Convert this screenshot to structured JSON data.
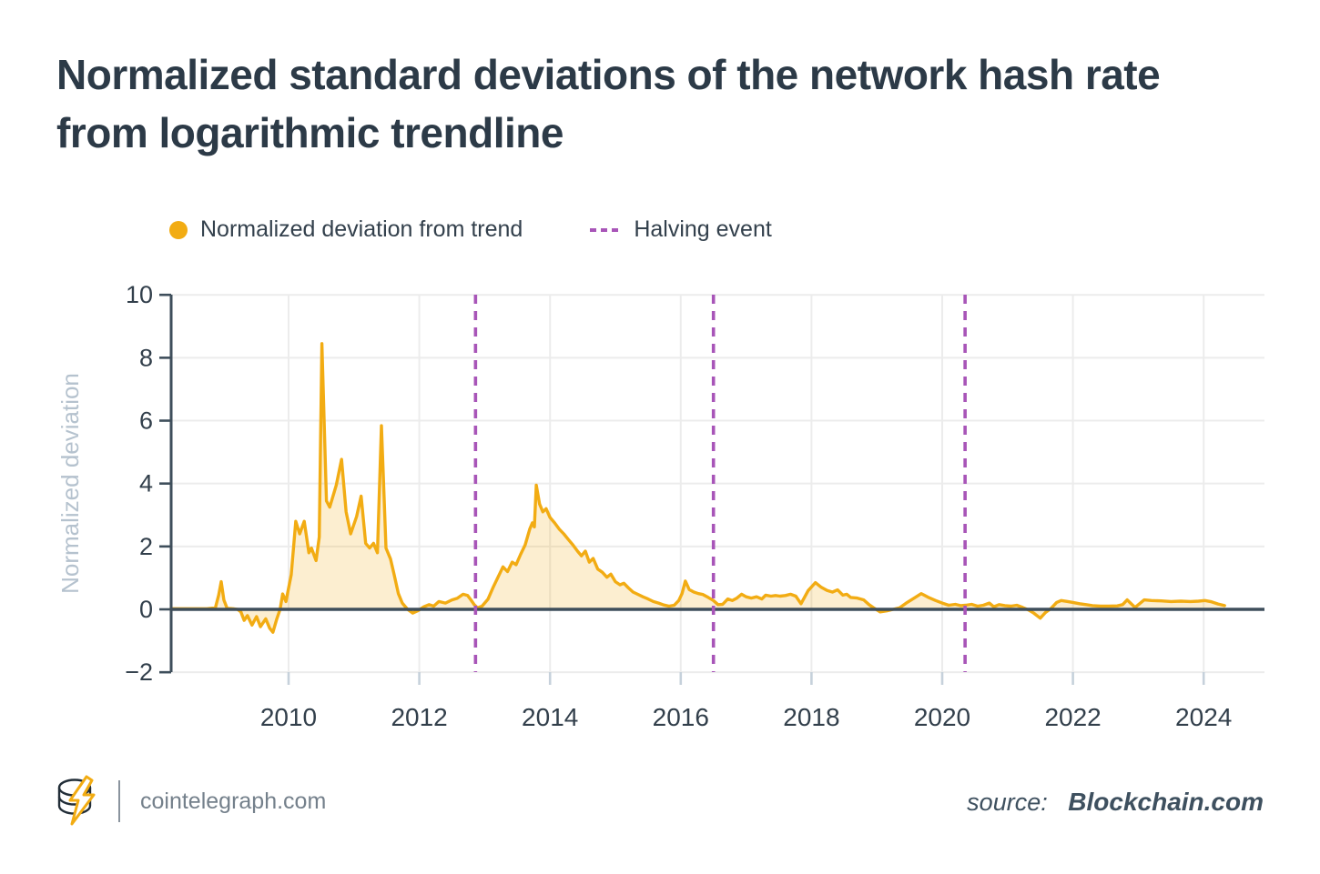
{
  "header": {
    "title_line1": "Normalized standard deviations of the network hash rate",
    "title_line2": "from logarithmic trendline"
  },
  "legend": [
    {
      "label": "Normalized deviation from trend",
      "marker": "dot",
      "color": "#F2AC13"
    },
    {
      "label": "Halving event",
      "marker": "dashed-line",
      "color": "#A855B8"
    }
  ],
  "colors": {
    "series_line": "#F2AC13",
    "series_fill": "rgba(242,172,19,0.20)",
    "halving_line": "#A855B8",
    "axis_dark": "#3E4E5B",
    "grid": "#ECECEC",
    "tick_text": "#323F4B",
    "x_tick_stub": "#C6D1DB",
    "axis_unit_label": "#B5C2CE",
    "title_text": "#2C3A47"
  },
  "chart_data": {
    "type": "area",
    "title": "Normalized standard deviations of the network hash rate from logarithmic trendline",
    "xlabel": "",
    "ylabel": "Normalized deviation",
    "xlim": [
      2008.2,
      2024.93
    ],
    "ylim": [
      -2,
      10
    ],
    "x_ticks": [
      2010,
      2012,
      2014,
      2016,
      2018,
      2020,
      2022,
      2024
    ],
    "y_ticks": [
      -2,
      0,
      2,
      4,
      6,
      8,
      10
    ],
    "grid": true,
    "legend_position": "top",
    "events": [
      {
        "label": "Halving event",
        "x": 2012.86
      },
      {
        "label": "Halving event",
        "x": 2016.5
      },
      {
        "label": "Halving event",
        "x": 2020.35
      }
    ],
    "series": [
      {
        "name": "Normalized deviation from trend",
        "points": [
          [
            2008.2,
            0.02
          ],
          [
            2008.5,
            0.02
          ],
          [
            2008.75,
            0.02
          ],
          [
            2008.88,
            0.05
          ],
          [
            2008.93,
            0.45
          ],
          [
            2008.97,
            0.88
          ],
          [
            2009.01,
            0.3
          ],
          [
            2009.06,
            0.03
          ],
          [
            2009.15,
            0.02
          ],
          [
            2009.22,
            0.0
          ],
          [
            2009.27,
            -0.08
          ],
          [
            2009.32,
            -0.35
          ],
          [
            2009.37,
            -0.2
          ],
          [
            2009.44,
            -0.5
          ],
          [
            2009.51,
            -0.23
          ],
          [
            2009.57,
            -0.55
          ],
          [
            2009.65,
            -0.3
          ],
          [
            2009.71,
            -0.6
          ],
          [
            2009.76,
            -0.73
          ],
          [
            2009.82,
            -0.3
          ],
          [
            2009.87,
            0.0
          ],
          [
            2009.91,
            0.49
          ],
          [
            2009.96,
            0.25
          ],
          [
            2010.04,
            1.1
          ],
          [
            2010.11,
            2.8
          ],
          [
            2010.17,
            2.4
          ],
          [
            2010.24,
            2.8
          ],
          [
            2010.31,
            1.8
          ],
          [
            2010.35,
            1.95
          ],
          [
            2010.42,
            1.55
          ],
          [
            2010.47,
            2.3
          ],
          [
            2010.51,
            8.45
          ],
          [
            2010.58,
            3.45
          ],
          [
            2010.63,
            3.25
          ],
          [
            2010.73,
            3.95
          ],
          [
            2010.81,
            4.77
          ],
          [
            2010.88,
            3.1
          ],
          [
            2010.95,
            2.4
          ],
          [
            2011.04,
            2.95
          ],
          [
            2011.11,
            3.6
          ],
          [
            2011.18,
            2.1
          ],
          [
            2011.24,
            1.95
          ],
          [
            2011.3,
            2.1
          ],
          [
            2011.36,
            1.8
          ],
          [
            2011.42,
            5.84
          ],
          [
            2011.49,
            1.95
          ],
          [
            2011.56,
            1.6
          ],
          [
            2011.61,
            1.15
          ],
          [
            2011.68,
            0.5
          ],
          [
            2011.74,
            0.2
          ],
          [
            2011.82,
            0.0
          ],
          [
            2011.9,
            -0.12
          ],
          [
            2011.98,
            -0.04
          ],
          [
            2012.07,
            0.08
          ],
          [
            2012.15,
            0.15
          ],
          [
            2012.22,
            0.1
          ],
          [
            2012.3,
            0.25
          ],
          [
            2012.4,
            0.2
          ],
          [
            2012.5,
            0.3
          ],
          [
            2012.58,
            0.35
          ],
          [
            2012.67,
            0.48
          ],
          [
            2012.74,
            0.44
          ],
          [
            2012.79,
            0.3
          ],
          [
            2012.84,
            0.15
          ],
          [
            2012.89,
            0.05
          ],
          [
            2012.96,
            0.1
          ],
          [
            2013.05,
            0.32
          ],
          [
            2013.13,
            0.7
          ],
          [
            2013.21,
            1.05
          ],
          [
            2013.28,
            1.35
          ],
          [
            2013.35,
            1.2
          ],
          [
            2013.42,
            1.5
          ],
          [
            2013.48,
            1.42
          ],
          [
            2013.55,
            1.75
          ],
          [
            2013.62,
            2.05
          ],
          [
            2013.69,
            2.55
          ],
          [
            2013.73,
            2.75
          ],
          [
            2013.76,
            2.62
          ],
          [
            2013.79,
            3.95
          ],
          [
            2013.84,
            3.35
          ],
          [
            2013.89,
            3.1
          ],
          [
            2013.94,
            3.2
          ],
          [
            2014.0,
            2.92
          ],
          [
            2014.07,
            2.75
          ],
          [
            2014.14,
            2.55
          ],
          [
            2014.21,
            2.4
          ],
          [
            2014.28,
            2.22
          ],
          [
            2014.35,
            2.05
          ],
          [
            2014.42,
            1.85
          ],
          [
            2014.48,
            1.7
          ],
          [
            2014.54,
            1.85
          ],
          [
            2014.6,
            1.5
          ],
          [
            2014.66,
            1.62
          ],
          [
            2014.73,
            1.28
          ],
          [
            2014.8,
            1.18
          ],
          [
            2014.87,
            1.02
          ],
          [
            2014.93,
            1.12
          ],
          [
            2015.0,
            0.88
          ],
          [
            2015.07,
            0.78
          ],
          [
            2015.13,
            0.83
          ],
          [
            2015.2,
            0.68
          ],
          [
            2015.27,
            0.55
          ],
          [
            2015.34,
            0.48
          ],
          [
            2015.42,
            0.4
          ],
          [
            2015.5,
            0.33
          ],
          [
            2015.58,
            0.25
          ],
          [
            2015.66,
            0.2
          ],
          [
            2015.74,
            0.14
          ],
          [
            2015.82,
            0.1
          ],
          [
            2015.9,
            0.13
          ],
          [
            2015.97,
            0.28
          ],
          [
            2016.02,
            0.5
          ],
          [
            2016.07,
            0.9
          ],
          [
            2016.13,
            0.63
          ],
          [
            2016.2,
            0.55
          ],
          [
            2016.27,
            0.5
          ],
          [
            2016.34,
            0.47
          ],
          [
            2016.42,
            0.38
          ],
          [
            2016.5,
            0.28
          ],
          [
            2016.57,
            0.15
          ],
          [
            2016.64,
            0.16
          ],
          [
            2016.72,
            0.33
          ],
          [
            2016.79,
            0.28
          ],
          [
            2016.86,
            0.36
          ],
          [
            2016.93,
            0.48
          ],
          [
            2017.0,
            0.4
          ],
          [
            2017.08,
            0.36
          ],
          [
            2017.16,
            0.4
          ],
          [
            2017.24,
            0.33
          ],
          [
            2017.3,
            0.45
          ],
          [
            2017.38,
            0.42
          ],
          [
            2017.45,
            0.44
          ],
          [
            2017.52,
            0.42
          ],
          [
            2017.6,
            0.44
          ],
          [
            2017.68,
            0.48
          ],
          [
            2017.76,
            0.42
          ],
          [
            2017.84,
            0.18
          ],
          [
            2017.95,
            0.6
          ],
          [
            2018.06,
            0.85
          ],
          [
            2018.15,
            0.7
          ],
          [
            2018.24,
            0.6
          ],
          [
            2018.32,
            0.55
          ],
          [
            2018.4,
            0.62
          ],
          [
            2018.48,
            0.45
          ],
          [
            2018.54,
            0.48
          ],
          [
            2018.6,
            0.38
          ],
          [
            2018.7,
            0.36
          ],
          [
            2018.8,
            0.3
          ],
          [
            2018.88,
            0.15
          ],
          [
            2018.95,
            0.05
          ],
          [
            2019.05,
            -0.08
          ],
          [
            2019.15,
            -0.05
          ],
          [
            2019.25,
            0.0
          ],
          [
            2019.35,
            0.05
          ],
          [
            2019.45,
            0.2
          ],
          [
            2019.55,
            0.33
          ],
          [
            2019.68,
            0.5
          ],
          [
            2019.8,
            0.37
          ],
          [
            2019.9,
            0.28
          ],
          [
            2020.0,
            0.2
          ],
          [
            2020.1,
            0.13
          ],
          [
            2020.2,
            0.16
          ],
          [
            2020.28,
            0.12
          ],
          [
            2020.36,
            0.13
          ],
          [
            2020.45,
            0.16
          ],
          [
            2020.54,
            0.1
          ],
          [
            2020.63,
            0.13
          ],
          [
            2020.72,
            0.2
          ],
          [
            2020.79,
            0.08
          ],
          [
            2020.87,
            0.15
          ],
          [
            2020.96,
            0.12
          ],
          [
            2021.05,
            0.1
          ],
          [
            2021.14,
            0.13
          ],
          [
            2021.23,
            0.06
          ],
          [
            2021.32,
            -0.02
          ],
          [
            2021.4,
            -0.12
          ],
          [
            2021.5,
            -0.28
          ],
          [
            2021.58,
            -0.1
          ],
          [
            2021.66,
            0.02
          ],
          [
            2021.75,
            0.22
          ],
          [
            2021.82,
            0.28
          ],
          [
            2021.92,
            0.25
          ],
          [
            2022.0,
            0.22
          ],
          [
            2022.1,
            0.18
          ],
          [
            2022.2,
            0.15
          ],
          [
            2022.3,
            0.12
          ],
          [
            2022.42,
            0.1
          ],
          [
            2022.55,
            0.1
          ],
          [
            2022.68,
            0.11
          ],
          [
            2022.76,
            0.15
          ],
          [
            2022.83,
            0.3
          ],
          [
            2022.95,
            0.06
          ],
          [
            2023.09,
            0.3
          ],
          [
            2023.2,
            0.28
          ],
          [
            2023.35,
            0.27
          ],
          [
            2023.5,
            0.25
          ],
          [
            2023.65,
            0.26
          ],
          [
            2023.8,
            0.25
          ],
          [
            2023.92,
            0.26
          ],
          [
            2024.02,
            0.28
          ],
          [
            2024.12,
            0.24
          ],
          [
            2024.22,
            0.17
          ],
          [
            2024.32,
            0.12
          ]
        ]
      }
    ]
  },
  "footer": {
    "brand": "cointelegraph.com",
    "source_prefix": "source:",
    "source_name": "Blockchain.com"
  }
}
